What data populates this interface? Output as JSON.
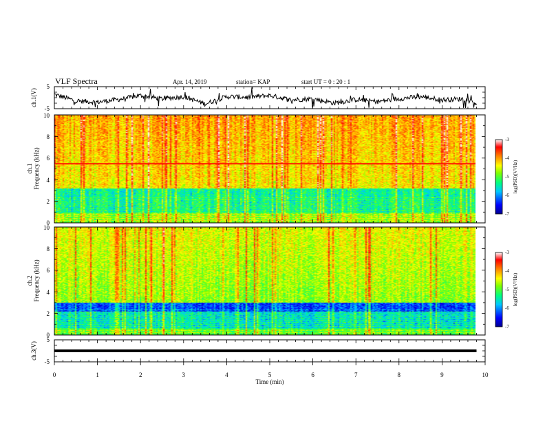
{
  "header": {
    "title": "VLF Spectra",
    "date": "Apr. 14, 2019",
    "station": "station= KAP",
    "start": "start  UT =   0  : 20 : 1"
  },
  "chart_data": [
    {
      "type": "line",
      "panel": "ch1-waveform",
      "ylabel": "ch.1(V)",
      "ylim": [
        -5,
        5
      ],
      "yticks": [
        "5",
        "-5"
      ],
      "x": [
        0,
        0.5,
        1,
        1.5,
        2,
        2.5,
        3,
        3.5,
        4,
        4.5,
        5,
        5.5,
        6,
        6.5,
        7,
        7.5,
        8,
        8.5,
        9,
        9.5,
        9.8
      ],
      "values": [
        1.5,
        -1.5,
        -2.0,
        -0.8,
        1.0,
        -0.5,
        0.5,
        -2.8,
        0.5,
        0.2,
        1.0,
        -1.0,
        -0.5,
        -2.5,
        -0.8,
        -1.8,
        -0.5,
        0.5,
        -1.0,
        -0.5,
        -2.5
      ]
    },
    {
      "type": "heatmap",
      "panel": "ch1-spectrogram",
      "ylabel_top": "ch.1",
      "ylabel": "Frequency (kHz)",
      "ylim": [
        0,
        10
      ],
      "yticks": [
        "0",
        "2",
        "4",
        "6",
        "8",
        "10"
      ],
      "colorbar": {
        "label": "log(PSD)(V²/Hz)",
        "ticks": [
          "-3",
          "-4",
          "-5",
          "-6",
          "-7"
        ],
        "range": [
          -7,
          -3
        ]
      }
    },
    {
      "type": "heatmap",
      "panel": "ch2-spectrogram",
      "ylabel_top": "ch.2",
      "ylabel": "Frequency (kHz)",
      "ylim": [
        0,
        10
      ],
      "yticks": [
        "0",
        "2",
        "4",
        "6",
        "8",
        "10"
      ],
      "colorbar": {
        "label": "log(PSD)(V²/Hz)",
        "ticks": [
          "-3",
          "-4",
          "-5",
          "-6",
          "-7"
        ],
        "range": [
          -7,
          -3
        ]
      }
    },
    {
      "type": "line",
      "panel": "ch3-waveform",
      "ylabel": "ch.3(V)",
      "ylim": [
        -5,
        5
      ],
      "yticks": [
        "5",
        "-5"
      ],
      "x": [
        0,
        9.8
      ],
      "values": [
        0,
        0
      ]
    }
  ],
  "xaxis": {
    "label": "Time (min)",
    "ticks": [
      "0",
      "1",
      "2",
      "3",
      "4",
      "5",
      "6",
      "7",
      "8",
      "9",
      "10"
    ],
    "xlim": [
      0,
      10
    ]
  },
  "colors": {
    "spectrum": [
      "#000090",
      "#0000ff",
      "#00c8ff",
      "#00ff80",
      "#80ff00",
      "#ffff00",
      "#ff8000",
      "#ff0000",
      "#ffffff"
    ]
  }
}
